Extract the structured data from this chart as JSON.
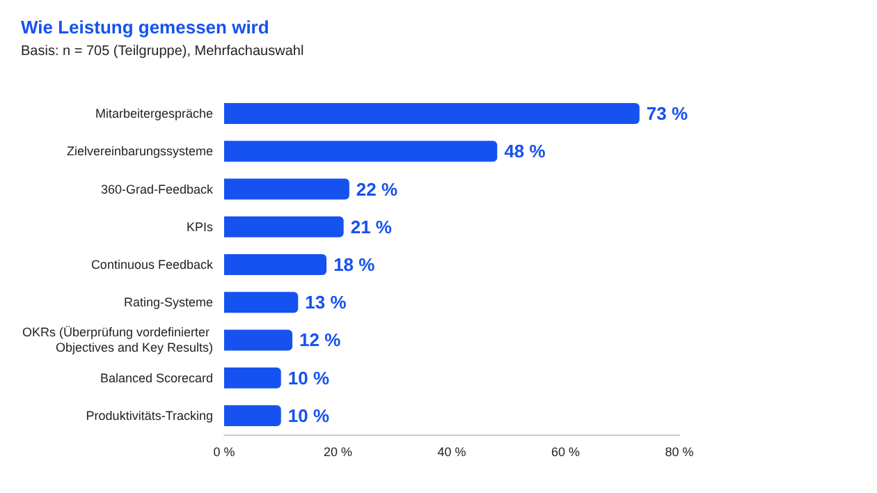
{
  "chart_data": {
    "type": "bar",
    "orientation": "horizontal",
    "title": "Wie Leistung gemessen wird",
    "subtitle": "Basis: n = 705 (Teilgruppe), Mehrfachauswahl",
    "categories": [
      "Mitarbeitergespräche",
      "Zielvereinbarungssysteme",
      "360-Grad-Feedback",
      "KPIs",
      "Continuous Feedback",
      "Rating-Systeme",
      "OKRs (Überprüfung vordefinierter Objectives and Key Results)",
      "Balanced Scorecard",
      "Produktivitäts-Tracking"
    ],
    "values": [
      73,
      48,
      22,
      21,
      18,
      13,
      12,
      10,
      10
    ],
    "value_labels": [
      "73 %",
      "48 %",
      "22 %",
      "21 %",
      "18 %",
      "13 %",
      "12 %",
      "10 %",
      "10 %"
    ],
    "color": "#1652f0",
    "xlim": [
      0,
      80
    ],
    "xticks": [
      {
        "value": 0,
        "label": "0 %"
      },
      {
        "value": 20,
        "label": "20 %"
      },
      {
        "value": 40,
        "label": "40 %"
      },
      {
        "value": 60,
        "label": "60 %"
      },
      {
        "value": 80,
        "label": "80 %"
      }
    ]
  }
}
